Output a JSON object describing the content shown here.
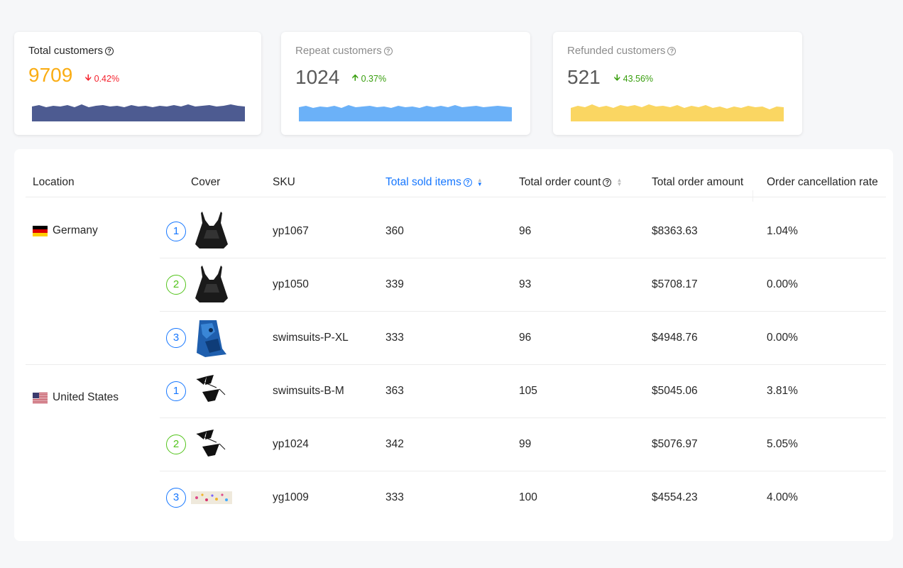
{
  "cards": [
    {
      "title": "Total customers",
      "value": "9709",
      "trend": "0.42%",
      "direction": "down",
      "color": "#2e3e7e"
    },
    {
      "title": "Repeat customers",
      "value": "1024",
      "trend": "0.37%",
      "direction": "up",
      "color": "#5ba8f7"
    },
    {
      "title": "Refunded customers",
      "value": "521",
      "trend": "43.56%",
      "direction": "down",
      "color": "#fad251"
    }
  ],
  "table": {
    "headers": {
      "location": "Location",
      "cover": "Cover",
      "sku": "SKU",
      "total_sold_items": "Total sold items",
      "total_order_count": "Total order count",
      "total_order_amount": "Total order amount",
      "order_cancellation_rate": "Order cancellation rate"
    },
    "groups": [
      {
        "location": "Germany",
        "flag": "de-flag",
        "rows": [
          {
            "rank": "1",
            "cover": "black-swimdress-image",
            "sku": "yp1067",
            "sold": "360",
            "count": "96",
            "amount": "$8363.63",
            "rate": "1.04%"
          },
          {
            "rank": "2",
            "cover": "black-swimdress-image",
            "sku": "yp1050",
            "sold": "339",
            "count": "93",
            "amount": "$5708.17",
            "rate": "0.00%"
          },
          {
            "rank": "3",
            "cover": "blue-sarong-image",
            "sku": "swimsuits-P-XL",
            "sold": "333",
            "count": "96",
            "amount": "$4948.76",
            "rate": "0.00%"
          }
        ]
      },
      {
        "location": "United States",
        "flag": "us-flag",
        "rows": [
          {
            "rank": "1",
            "cover": "black-bikini-image",
            "sku": "swimsuits-B-M",
            "sold": "363",
            "count": "105",
            "amount": "$5045.06",
            "rate": "3.81%"
          },
          {
            "rank": "2",
            "cover": "black-bikini-image",
            "sku": "yp1024",
            "sold": "342",
            "count": "99",
            "amount": "$5076.97",
            "rate": "5.05%"
          },
          {
            "rank": "3",
            "cover": "floral-band-image",
            "sku": "yg1009",
            "sold": "333",
            "count": "100",
            "amount": "$4554.23",
            "rate": "4.00%"
          }
        ]
      }
    ]
  }
}
